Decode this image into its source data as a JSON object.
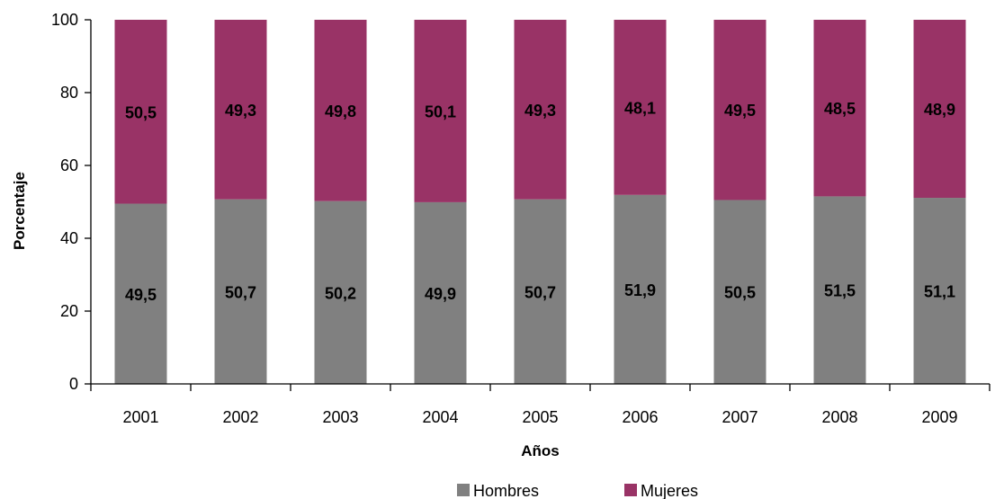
{
  "chart_data": {
    "type": "bar",
    "stacked": true,
    "categories": [
      "2001",
      "2002",
      "2003",
      "2004",
      "2005",
      "2006",
      "2007",
      "2008",
      "2009"
    ],
    "series": [
      {
        "name": "Hombres",
        "color": "#808080",
        "values": [
          49.5,
          50.7,
          50.2,
          49.9,
          50.7,
          51.9,
          50.5,
          51.5,
          51.1
        ],
        "labels": [
          "49,5",
          "50,7",
          "50,2",
          "49,9",
          "50,7",
          "51,9",
          "50,5",
          "51,5",
          "51,1"
        ]
      },
      {
        "name": "Mujeres",
        "color": "#993366",
        "values": [
          50.5,
          49.3,
          49.8,
          50.1,
          49.3,
          48.1,
          49.5,
          48.5,
          48.9
        ],
        "labels": [
          "50,5",
          "49,3",
          "49,8",
          "50,1",
          "49,3",
          "48,1",
          "49,5",
          "48,5",
          "48,9"
        ]
      }
    ],
    "xlabel": "Años",
    "ylabel": "Porcentaje",
    "ylim": [
      0,
      100
    ],
    "yticks": [
      "0",
      "20",
      "40",
      "60",
      "80",
      "100"
    ],
    "grid": false,
    "legend_position": "bottom"
  }
}
